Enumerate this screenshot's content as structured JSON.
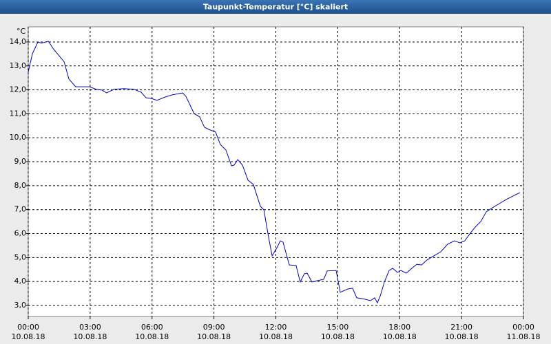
{
  "chart_data": {
    "type": "line",
    "title": "Taupunkt-Temperatur [°C] skaliert",
    "y_unit": "°C",
    "xlim": [
      0,
      24
    ],
    "ylim": [
      2.54,
      14.63
    ],
    "grid": true,
    "xticks": [
      {
        "value": 0,
        "label": "00:00",
        "date": "10.08.18"
      },
      {
        "value": 3,
        "label": "03:00",
        "date": "10.08.18"
      },
      {
        "value": 6,
        "label": "06:00",
        "date": "10.08.18"
      },
      {
        "value": 9,
        "label": "09:00",
        "date": "10.08.18"
      },
      {
        "value": 12,
        "label": "12:00",
        "date": "10.08.18"
      },
      {
        "value": 15,
        "label": "15:00",
        "date": "10.08.18"
      },
      {
        "value": 18,
        "label": "18:00",
        "date": "10.08.18"
      },
      {
        "value": 21,
        "label": "21:00",
        "date": "10.08.18"
      },
      {
        "value": 24,
        "label": "00:00",
        "date": "11.08.18"
      }
    ],
    "yticks": [
      {
        "value": 3,
        "label": "3,0"
      },
      {
        "value": 4,
        "label": "4,0"
      },
      {
        "value": 5,
        "label": "5,0"
      },
      {
        "value": 6,
        "label": "6,0"
      },
      {
        "value": 7,
        "label": "7,0"
      },
      {
        "value": 8,
        "label": "8,0"
      },
      {
        "value": 9,
        "label": "9,0"
      },
      {
        "value": 10,
        "label": "10,0"
      },
      {
        "value": 11,
        "label": "11,0"
      },
      {
        "value": 12,
        "label": "12,0"
      },
      {
        "value": 13,
        "label": "13,0"
      },
      {
        "value": 14,
        "label": "14,0"
      }
    ],
    "series": [
      {
        "color": "#0000cc",
        "x": [
          0,
          0.2,
          0.47,
          0.63,
          0.97,
          1.23,
          1.47,
          1.74,
          1.97,
          2.3,
          2.97,
          3.3,
          3.57,
          3.8,
          4.14,
          4.64,
          5.14,
          5.47,
          5.71,
          5.97,
          6.24,
          6.64,
          6.98,
          7.48,
          7.64,
          8.04,
          8.31,
          8.54,
          8.74,
          9.08,
          9.31,
          9.58,
          9.85,
          9.98,
          10.15,
          10.38,
          10.65,
          10.91,
          11.25,
          11.42,
          11.65,
          11.82,
          12.05,
          12.22,
          12.35,
          12.65,
          12.98,
          13.18,
          13.38,
          13.52,
          13.75,
          13.99,
          14.32,
          14.49,
          14.92,
          15.12,
          15.49,
          15.72,
          15.92,
          16.32,
          16.59,
          16.79,
          16.92,
          17.06,
          17.26,
          17.49,
          17.66,
          17.89,
          18.06,
          18.32,
          18.59,
          18.83,
          19.06,
          19.33,
          19.66,
          19.99,
          20.33,
          20.66,
          20.93,
          21.16,
          21.4,
          21.66,
          21.93,
          22.2,
          22.5,
          22.83,
          23.16,
          23.5,
          23.83
        ],
        "values": [
          12.74,
          13.5,
          14.0,
          13.95,
          14.03,
          13.7,
          13.45,
          13.17,
          12.45,
          12.13,
          12.13,
          12.02,
          11.99,
          11.87,
          12.02,
          12.05,
          12.02,
          11.9,
          11.67,
          11.64,
          11.56,
          11.7,
          11.79,
          11.87,
          11.73,
          11.01,
          10.87,
          10.44,
          10.35,
          10.24,
          9.72,
          9.49,
          8.83,
          8.86,
          9.09,
          8.86,
          8.23,
          8.05,
          7.14,
          6.99,
          5.84,
          5.07,
          5.41,
          5.7,
          5.64,
          4.69,
          4.67,
          3.98,
          4.32,
          4.35,
          3.98,
          4.03,
          4.09,
          4.44,
          4.46,
          3.55,
          3.69,
          3.72,
          3.32,
          3.26,
          3.2,
          3.32,
          3.11,
          3.4,
          3.98,
          4.46,
          4.55,
          4.38,
          4.46,
          4.35,
          4.55,
          4.72,
          4.69,
          4.9,
          5.07,
          5.24,
          5.56,
          5.7,
          5.61,
          5.7,
          5.99,
          6.27,
          6.5,
          6.91,
          7.08,
          7.25,
          7.42,
          7.57,
          7.71
        ]
      }
    ]
  }
}
